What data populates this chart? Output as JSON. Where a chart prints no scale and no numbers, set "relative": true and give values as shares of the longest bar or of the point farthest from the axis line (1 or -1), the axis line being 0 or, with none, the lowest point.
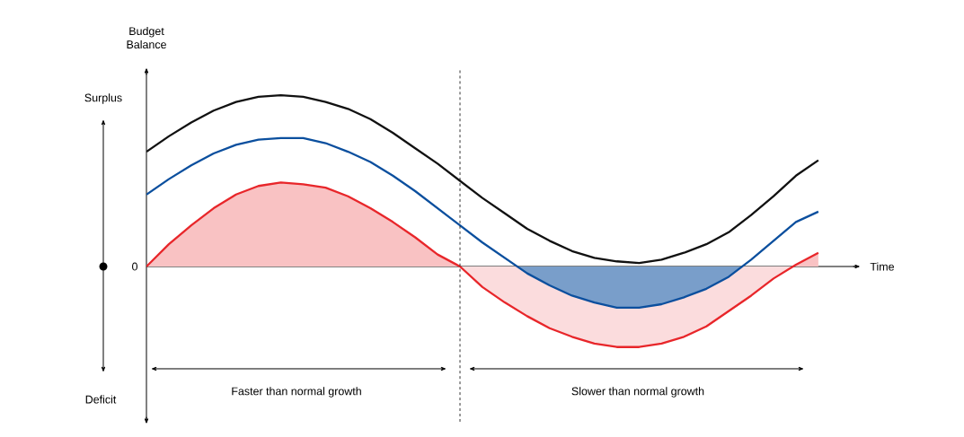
{
  "chart_data": {
    "type": "line",
    "relative": true,
    "xlabel": "Time",
    "ylabel": "Budget Balance",
    "categories": [
      null,
      null,
      null,
      null,
      null,
      null,
      null,
      null,
      null,
      null,
      null,
      null,
      null,
      null,
      null,
      null,
      null,
      null,
      null,
      null,
      null,
      null,
      null,
      null,
      null,
      null,
      null,
      null,
      null,
      null,
      null
    ],
    "series": [
      {
        "type": "area",
        "color": "#e8262a",
        "values": [
          0,
          0.13,
          0.24,
          0.34,
          0.42,
          0.47,
          0.49,
          0.48,
          0.46,
          0.41,
          0.34,
          0.26,
          0.17,
          0.07,
          0,
          -0.12,
          -0.21,
          -0.29,
          -0.36,
          -0.41,
          -0.45,
          -0.47,
          -0.47,
          -0.45,
          -0.41,
          -0.35,
          -0.26,
          -0.17,
          -0.07,
          0.01,
          0.08
        ]
      },
      {
        "type": "area",
        "color": "#0b4f9e",
        "values": [
          0.42,
          0.51,
          0.59,
          0.66,
          0.71,
          0.74,
          0.75,
          0.75,
          0.72,
          0.67,
          0.61,
          0.53,
          0.44,
          0.34,
          0.24,
          0.14,
          0.05,
          -0.04,
          -0.11,
          -0.17,
          -0.21,
          -0.24,
          -0.24,
          -0.22,
          -0.18,
          -0.13,
          -0.06,
          0.04,
          0.15,
          0.26,
          0.32
        ]
      },
      {
        "color": "#111111",
        "values": [
          0.67,
          0.76,
          0.84,
          0.91,
          0.96,
          0.99,
          1,
          0.99,
          0.96,
          0.92,
          0.86,
          0.78,
          0.69,
          0.6,
          0.5,
          0.4,
          0.31,
          0.22,
          0.15,
          0.09,
          0.05,
          0.03,
          0.02,
          0.04,
          0.08,
          0.13,
          0.2,
          0.3,
          0.41,
          0.53,
          0.62
        ]
      }
    ],
    "annotations": [
      "Surplus",
      "0",
      "Deficit",
      "Faster than normal growth",
      "Slower than normal growth"
    ],
    "marker": "none"
  }
}
